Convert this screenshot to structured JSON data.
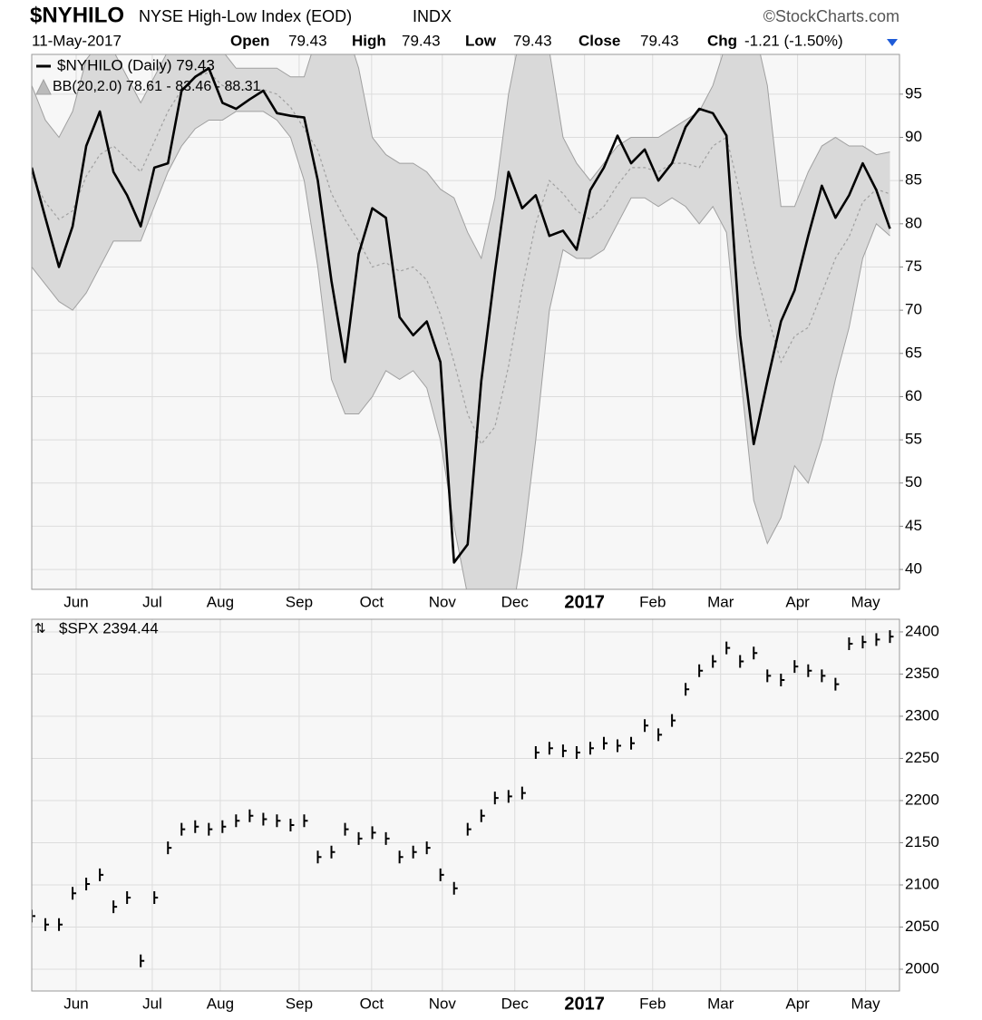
{
  "header": {
    "symbol": "$NYHILO",
    "name": "NYSE High-Low Index (EOD)",
    "exchange": "INDX",
    "brand": "©StockCharts.com",
    "date": "11-May-2017",
    "open_label": "Open",
    "open": "79.43",
    "high_label": "High",
    "high": "79.43",
    "low_label": "Low",
    "low": "79.43",
    "close_label": "Close",
    "close": "79.43",
    "chg_label": "Chg",
    "chg": "-1.21 (-1.50%)"
  },
  "chart_data": [
    {
      "type": "bollinger",
      "grid": true,
      "series": [
        {
          "name": "$NYHILO (Daily) 79.43",
          "color": "#000000",
          "values": [
            86.5,
            80.7,
            75,
            79.7,
            89,
            93,
            86,
            83.3,
            79.7,
            86.5,
            87,
            95.4,
            97,
            98,
            94,
            93.3,
            94.4,
            95.4,
            92.8,
            92.5,
            92.3,
            85,
            73.4,
            64,
            76.5,
            81.8,
            80.7,
            69.2,
            67.1,
            68.7,
            64,
            40.8,
            42.9,
            61.8,
            74.4,
            86,
            81.8,
            83.3,
            78.6,
            79.2,
            77,
            83.9,
            86.5,
            90.2,
            87,
            88.6,
            85,
            87,
            91.2,
            93.3,
            92.8,
            90.2,
            67.1,
            54.5,
            61.8,
            68.7,
            72.3,
            78.6,
            84.4,
            80.7,
            83.3,
            87,
            83.9,
            79.43
          ]
        }
      ],
      "band": {
        "name": "BB(20,2.0) 78.61 - 83.46 - 88.31",
        "color": "#d9d9d9",
        "edge_color": "#a0a0a0",
        "upper": [
          96,
          92,
          90,
          93,
          99,
          101,
          100,
          97,
          94,
          97,
          100,
          102,
          103,
          103,
          100,
          98,
          98,
          98,
          98,
          97,
          97,
          102,
          105,
          103,
          98,
          90,
          88,
          87,
          87,
          86,
          84,
          83,
          79,
          76,
          83,
          95,
          103,
          105,
          100,
          90,
          87,
          85,
          87,
          89,
          90,
          90,
          90,
          91,
          92,
          93,
          96,
          101,
          104,
          103,
          96,
          82,
          82,
          86,
          89,
          90,
          89,
          89,
          88,
          88.31
        ],
        "middle": [
          85.5,
          82.5,
          80.5,
          81.5,
          85.5,
          88,
          89,
          87.5,
          86,
          89.5,
          93,
          95.5,
          97,
          97.5,
          96,
          95.5,
          95.5,
          95.5,
          95,
          93.5,
          91,
          88.5,
          83.5,
          80.5,
          78,
          75,
          75.5,
          74.5,
          75,
          73.5,
          69.5,
          64,
          58,
          54.5,
          56.5,
          63.5,
          72.5,
          80,
          85,
          83.5,
          81.5,
          80.5,
          82,
          84.5,
          86.5,
          86.5,
          86,
          87,
          87,
          86.5,
          89,
          90,
          83.5,
          75.5,
          69.5,
          64,
          67,
          68,
          72,
          76,
          78.5,
          82.5,
          84,
          83.46
        ],
        "lower": [
          75,
          73,
          71,
          70,
          72,
          75,
          78,
          78,
          78,
          82,
          86,
          89,
          91,
          92,
          92,
          93,
          93,
          93,
          92,
          90,
          85,
          75,
          62,
          58,
          58,
          60,
          63,
          62,
          63,
          61,
          55,
          45,
          37,
          33,
          30,
          32,
          42,
          55,
          70,
          77,
          76,
          76,
          77,
          80,
          83,
          83,
          82,
          83,
          82,
          80,
          82,
          79,
          63,
          48,
          43,
          46,
          52,
          50,
          55,
          62,
          68,
          76,
          80,
          78.61
        ]
      },
      "xlim": [
        0,
        63.7
      ],
      "xticks": [
        {
          "value": 3.26,
          "label": "Jun"
        },
        {
          "value": 8.85,
          "label": "Jul"
        },
        {
          "value": 13.84,
          "label": "Aug"
        },
        {
          "value": 19.63,
          "label": "Sep"
        },
        {
          "value": 24.95,
          "label": "Oct"
        },
        {
          "value": 30.14,
          "label": "Nov"
        },
        {
          "value": 35.46,
          "label": "Dec"
        },
        {
          "value": 40.58,
          "label": "2017"
        },
        {
          "value": 45.58,
          "label": "Feb"
        },
        {
          "value": 50.57,
          "label": "Mar"
        },
        {
          "value": 56.22,
          "label": "Apr"
        },
        {
          "value": 61.21,
          "label": "May"
        }
      ],
      "ylim": [
        37.7,
        99.6
      ],
      "yticks": [
        40,
        45,
        50,
        55,
        60,
        65,
        70,
        75,
        80,
        85,
        90,
        95
      ]
    },
    {
      "type": "price",
      "grid": true,
      "series": [
        {
          "name": "$SPX 2394.44",
          "color": "#000000",
          "values": [
            2063,
            2053,
            2053,
            2090,
            2101,
            2112,
            2074,
            2085,
            2010,
            2085,
            2144,
            2166,
            2169,
            2166,
            2169,
            2176,
            2182,
            2178,
            2176,
            2171,
            2176,
            2133,
            2139,
            2166,
            2155,
            2162,
            2155,
            2133,
            2139,
            2144,
            2112,
            2096,
            2166,
            2182,
            2203,
            2205,
            2209,
            2257,
            2262,
            2259,
            2257,
            2262,
            2268,
            2265,
            2268,
            2289,
            2278,
            2295,
            2332,
            2354,
            2365,
            2381,
            2365,
            2375,
            2348,
            2343,
            2359,
            2354,
            2348,
            2338,
            2386,
            2388,
            2391,
            2394.44
          ]
        }
      ],
      "xlim": [
        0,
        63.7
      ],
      "xticks": [
        {
          "value": 3.26,
          "label": "Jun"
        },
        {
          "value": 8.85,
          "label": "Jul"
        },
        {
          "value": 13.84,
          "label": "Aug"
        },
        {
          "value": 19.63,
          "label": "Sep"
        },
        {
          "value": 24.95,
          "label": "Oct"
        },
        {
          "value": 30.14,
          "label": "Nov"
        },
        {
          "value": 35.46,
          "label": "Dec"
        },
        {
          "value": 40.58,
          "label": "2017"
        },
        {
          "value": 45.58,
          "label": "Feb"
        },
        {
          "value": 50.57,
          "label": "Mar"
        },
        {
          "value": 56.22,
          "label": "Apr"
        },
        {
          "value": 61.21,
          "label": "May"
        }
      ],
      "ylim": [
        1974.2,
        2415
      ],
      "yticks": [
        2000,
        2050,
        2100,
        2150,
        2200,
        2250,
        2300,
        2350,
        2400
      ]
    }
  ]
}
